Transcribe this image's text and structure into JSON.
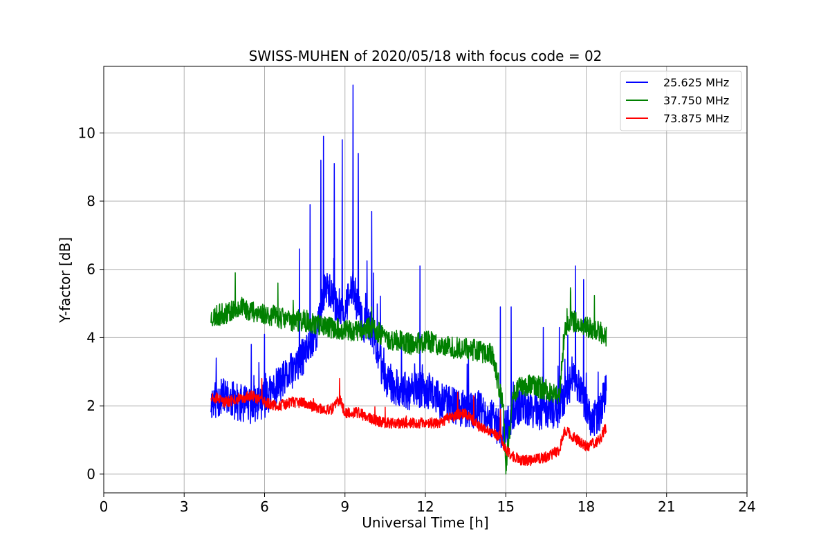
{
  "chart_data": {
    "type": "line",
    "title": "SWISS-MUHEN of 2020/05/18 with focus code = 02",
    "xlabel": "Universal Time [h]",
    "ylabel": "Y-factor [dB]",
    "xlim": [
      0,
      24
    ],
    "ylim": [
      -0.55,
      11.95
    ],
    "xticks": [
      0,
      3,
      6,
      9,
      12,
      15,
      18,
      21,
      24
    ],
    "yticks": [
      0,
      2,
      4,
      6,
      8,
      10
    ],
    "grid": true,
    "legend_position": "top-right",
    "series": [
      {
        "name": "25.625 MHz",
        "color": "#0000ff",
        "x": [
          4.0,
          4.5,
          5.0,
          5.5,
          6.0,
          6.5,
          7.0,
          7.5,
          8.0,
          8.3,
          8.6,
          9.0,
          9.3,
          9.6,
          10.0,
          10.5,
          11.0,
          11.5,
          12.0,
          12.5,
          13.0,
          13.5,
          14.0,
          14.5,
          14.9,
          15.3,
          15.6,
          16.0,
          16.5,
          17.0,
          17.3,
          17.6,
          17.9,
          18.2,
          18.5,
          18.75
        ],
        "y": [
          2.1,
          2.3,
          2.1,
          2.0,
          2.2,
          2.6,
          3.0,
          3.5,
          4.3,
          5.6,
          5.0,
          4.8,
          5.5,
          4.5,
          4.2,
          2.8,
          2.5,
          2.4,
          2.5,
          2.2,
          2.0,
          1.9,
          1.9,
          1.6,
          1.2,
          1.8,
          2.0,
          1.9,
          1.8,
          1.9,
          2.5,
          2.8,
          2.2,
          1.5,
          1.8,
          2.5
        ],
        "peak_x": [
          4.2,
          5.5,
          6.0,
          7.3,
          7.7,
          8.1,
          8.2,
          8.6,
          8.9,
          9.3,
          9.5,
          10.0,
          11.8,
          14.8,
          15.2,
          16.4,
          17.0,
          17.6,
          17.9
        ],
        "peak_y": [
          3.4,
          3.8,
          4.1,
          6.6,
          7.9,
          9.2,
          9.9,
          9.1,
          9.8,
          11.4,
          9.4,
          7.7,
          6.1,
          4.9,
          4.9,
          4.3,
          4.3,
          6.1,
          5.7
        ]
      },
      {
        "name": "37.750 MHz",
        "color": "#008000",
        "x": [
          4.0,
          4.5,
          5.0,
          5.5,
          6.0,
          6.5,
          7.0,
          7.5,
          8.0,
          8.5,
          9.0,
          9.5,
          10.0,
          10.5,
          11.0,
          11.5,
          12.0,
          12.5,
          13.0,
          13.5,
          14.0,
          14.5,
          14.9,
          15.0,
          15.3,
          15.6,
          16.0,
          16.5,
          17.0,
          17.2,
          17.5,
          18.0,
          18.5,
          18.75
        ],
        "y": [
          4.6,
          4.7,
          4.9,
          4.8,
          4.7,
          4.6,
          4.5,
          4.5,
          4.4,
          4.3,
          4.2,
          4.2,
          4.3,
          4.0,
          3.9,
          3.8,
          3.9,
          3.8,
          3.7,
          3.7,
          3.6,
          3.5,
          2.0,
          0.2,
          2.4,
          2.6,
          2.6,
          2.5,
          2.3,
          4.3,
          4.5,
          4.3,
          4.2,
          4.0
        ],
        "peak_x": [
          4.9,
          6.5,
          10.0,
          15.0
        ],
        "peak_y": [
          5.9,
          5.6,
          4.9,
          0.0
        ]
      },
      {
        "name": "73.875 MHz",
        "color": "#ff0000",
        "x": [
          4.0,
          4.5,
          5.0,
          5.5,
          6.0,
          6.5,
          7.0,
          7.5,
          8.0,
          8.5,
          8.8,
          9.0,
          9.5,
          10.0,
          10.5,
          11.0,
          11.5,
          12.0,
          12.5,
          13.0,
          13.5,
          14.0,
          14.5,
          14.8,
          15.0,
          15.3,
          15.6,
          16.0,
          16.5,
          17.0,
          17.2,
          17.5,
          18.0,
          18.5,
          18.75
        ],
        "y": [
          2.3,
          2.1,
          2.2,
          2.3,
          2.1,
          2.0,
          2.1,
          2.1,
          1.9,
          1.9,
          2.2,
          1.8,
          1.8,
          1.6,
          1.5,
          1.5,
          1.5,
          1.5,
          1.5,
          1.7,
          1.8,
          1.4,
          1.2,
          1.1,
          0.7,
          0.5,
          0.4,
          0.4,
          0.5,
          0.7,
          1.3,
          1.1,
          0.8,
          1.0,
          1.4
        ],
        "peak_x": [
          5.9,
          8.8,
          13.2,
          13.8,
          14.8
        ],
        "peak_y": [
          2.8,
          2.8,
          2.4,
          2.3,
          1.9
        ]
      }
    ]
  }
}
